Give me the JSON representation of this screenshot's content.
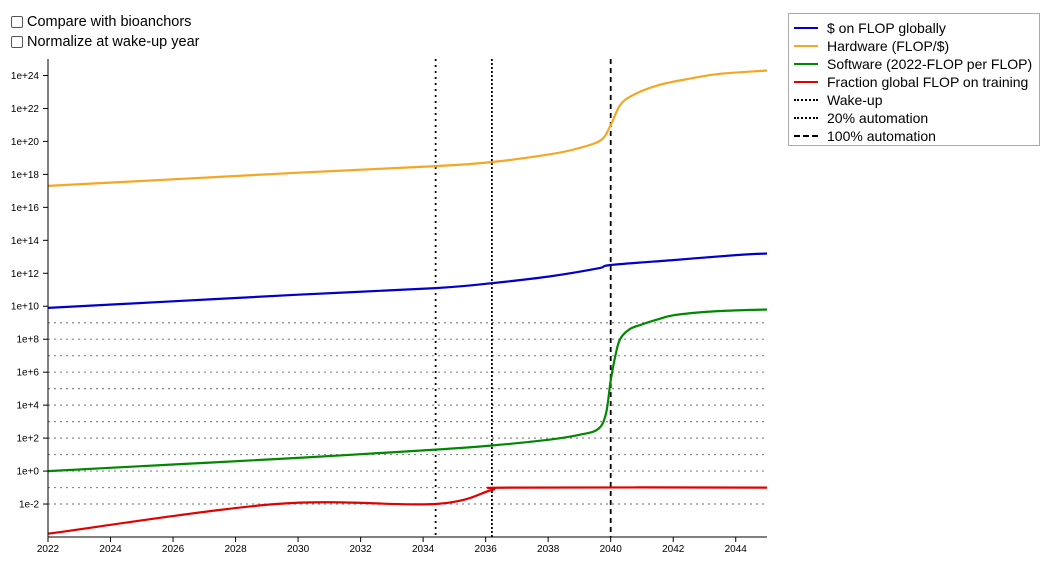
{
  "options": [
    {
      "label": "Compare with bioanchors",
      "checked": false
    },
    {
      "label": "Normalize at wake-up year",
      "checked": false
    }
  ],
  "chart_data": {
    "type": "line",
    "title": "",
    "xlabel": "",
    "ylabel": "",
    "y_scale": "log",
    "xlim": [
      2022,
      2045
    ],
    "ylim_log10": [
      -4,
      25
    ],
    "x_ticks": [
      "2022",
      "2024",
      "2026",
      "2028",
      "2030",
      "2032",
      "2034",
      "2036",
      "2038",
      "2040",
      "2042",
      "2044"
    ],
    "y_ticks": [
      "1e-2",
      "1e+0",
      "1e+2",
      "1e+4",
      "1e+6",
      "1e+8",
      "1e+10",
      "1e+12",
      "1e+14",
      "1e+16",
      "1e+18",
      "1e+20",
      "1e+22",
      "1e+24"
    ],
    "grid_dotted_log10": [
      -2,
      -1,
      0,
      1,
      2,
      3,
      4,
      5,
      6,
      7,
      8,
      9
    ],
    "legend_position": "outside-right",
    "series": [
      {
        "name": "$ on FLOP globally",
        "color": "#0000cc",
        "x": [
          2022,
          2026,
          2030,
          2034.4,
          2036.2,
          2038,
          2039.6,
          2040,
          2042,
          2044,
          2045
        ],
        "log10_y": [
          9.9,
          10.3,
          10.7,
          11.1,
          11.4,
          11.8,
          12.3,
          12.5,
          12.8,
          13.1,
          13.2
        ]
      },
      {
        "name": "Hardware (FLOP/$)",
        "color": "#f5a623",
        "x": [
          2022,
          2026,
          2030,
          2034.4,
          2036.2,
          2038,
          2039,
          2039.7,
          2040,
          2040.3,
          2040.7,
          2041.5,
          2042.5,
          2043.5,
          2045
        ],
        "log10_y": [
          17.3,
          17.7,
          18.1,
          18.5,
          18.75,
          19.2,
          19.6,
          20.1,
          21.0,
          22.2,
          22.8,
          23.4,
          23.8,
          24.1,
          24.3
        ]
      },
      {
        "name": "Software (2022-FLOP per FLOP)",
        "color": "#008800",
        "x": [
          2022,
          2026,
          2030,
          2034.4,
          2036.2,
          2038,
          2039,
          2039.6,
          2039.85,
          2040,
          2040.15,
          2040.3,
          2040.6,
          2041,
          2041.5,
          2042,
          2043,
          2044,
          2045
        ],
        "log10_y": [
          0.0,
          0.4,
          0.8,
          1.3,
          1.55,
          1.9,
          2.2,
          2.55,
          3.5,
          5.5,
          7.0,
          8.0,
          8.6,
          8.9,
          9.2,
          9.45,
          9.65,
          9.75,
          9.8
        ]
      },
      {
        "name": "Fraction global FLOP on training",
        "color": "#e00000",
        "x": [
          2022,
          2029.3,
          2034.4,
          2036.2,
          2036.8,
          2045
        ],
        "log10_y": [
          -3.8,
          -2.0,
          -2.0,
          -1.15,
          -1.0,
          -1.0
        ]
      }
    ],
    "markers": [
      {
        "name": "Wake-up",
        "x": 2034.4,
        "style": "dotted"
      },
      {
        "name": "20% automation",
        "x": 2036.2,
        "style": "dense-dotted"
      },
      {
        "name": "100% automation",
        "x": 2040.0,
        "style": "dashed"
      }
    ]
  },
  "legend": [
    {
      "label": "$ on FLOP globally",
      "style": "solid",
      "color": "#0000cc"
    },
    {
      "label": "Hardware (FLOP/$)",
      "style": "solid",
      "color": "#f5a623"
    },
    {
      "label": "Software (2022-FLOP per FLOP)",
      "style": "solid",
      "color": "#008800"
    },
    {
      "label": "Fraction global FLOP on training",
      "style": "solid",
      "color": "#e00000"
    },
    {
      "label": "Wake-up",
      "style": "dotted",
      "color": "#000000"
    },
    {
      "label": "20% automation",
      "style": "dense-dotted",
      "color": "#000000"
    },
    {
      "label": "100% automation",
      "style": "dashed",
      "color": "#000000"
    }
  ]
}
